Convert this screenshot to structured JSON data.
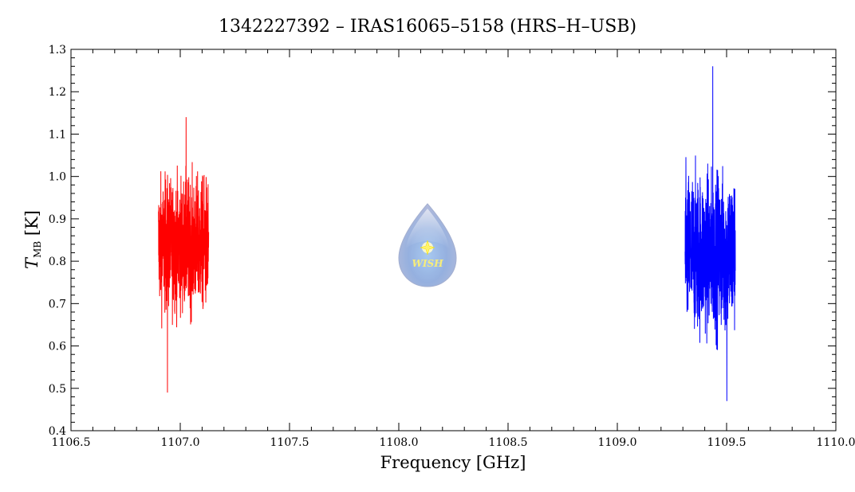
{
  "chart_data": {
    "type": "line",
    "title": "1342227392 – IRAS16065–5158 (HRS–H–USB)",
    "xlabel": "Frequency [GHz]",
    "ylabel": {
      "symbol": "T",
      "subscript": "MB",
      "unit": "[K]"
    },
    "xlim": [
      1106.5,
      1110.0
    ],
    "ylim": [
      0.4,
      1.3
    ],
    "xticks": [
      1106.5,
      1107.0,
      1107.5,
      1108.0,
      1108.5,
      1109.0,
      1109.5,
      1110.0
    ],
    "xtick_labels": [
      "1106.5",
      "1107.0",
      "1107.5",
      "1108.0",
      "1108.5",
      "1109.0",
      "1109.5",
      "1110.0"
    ],
    "yticks": [
      0.4,
      0.5,
      0.6,
      0.7,
      0.8,
      0.9,
      1.0,
      1.1,
      1.2,
      1.3
    ],
    "ytick_labels": [
      "0.4",
      "0.5",
      "0.6",
      "0.7",
      "0.8",
      "0.9",
      "1.0",
      "1.1",
      "1.2",
      "1.3"
    ],
    "grid": false,
    "series": [
      {
        "color": "#ff0000",
        "x_range": [
          1106.9,
          1107.13
        ],
        "mean": 0.84,
        "min": 0.49,
        "max": 1.14,
        "samples": 600
      },
      {
        "color": "#0000ff",
        "x_range": [
          1109.31,
          1109.54
        ],
        "mean": 0.82,
        "min": 0.47,
        "max": 1.26,
        "samples": 600
      }
    ],
    "logo": {
      "text": "WISH",
      "icon": "water-drop-star-icon"
    }
  }
}
